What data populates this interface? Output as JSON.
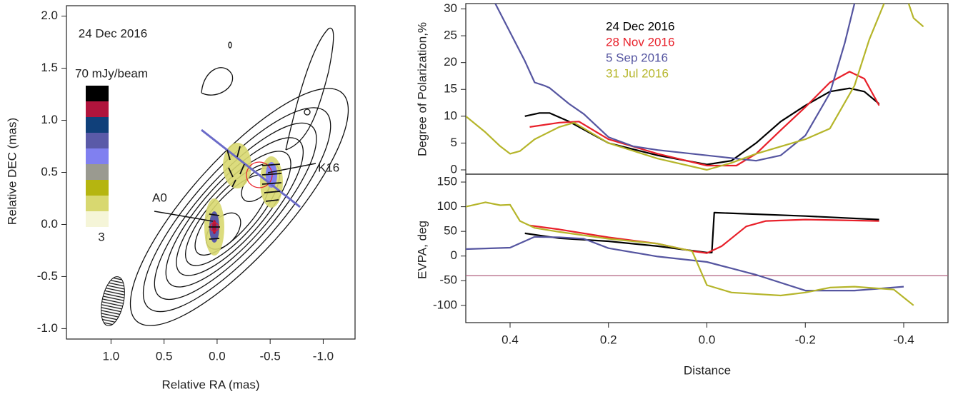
{
  "chart_data": [
    {
      "type": "contour",
      "title": "24 Dec 2016",
      "xlabel": "Relative RA (mas)",
      "ylabel": "Relative DEC (mas)",
      "xlim": [
        1.42,
        -1.3
      ],
      "ylim": [
        -1.1,
        2.1
      ],
      "xticks": [
        {
          "value": 1.0,
          "label": "1.0"
        },
        0.5,
        {
          "value": 0.0,
          "label": "0.0"
        },
        -0.5,
        {
          "value": -1.0,
          "label": "-1.0"
        }
      ],
      "yticks": [
        {
          "value": -1.0,
          "label": "-1.0"
        },
        -0.5,
        {
          "value": 0.0,
          "label": "0.0"
        },
        0.5,
        {
          "value": 1.0,
          "label": "1.0"
        },
        1.5,
        {
          "value": 2.0,
          "label": "2.0"
        }
      ],
      "annotations": [
        "A0",
        "K16"
      ],
      "colorbar": {
        "max_label": "70 mJy/beam",
        "min_label": "3",
        "colors": [
          "#000000",
          "#b0143c",
          "#10407a",
          "#5a5aa8",
          "#8080f0",
          "#9a9a90",
          "#b5b510",
          "#d8d870",
          "#f5f5d8"
        ]
      }
    },
    {
      "type": "line",
      "ylabel": "Degree of Polarization,%",
      "xlim": [
        0.49,
        -0.49
      ],
      "ylim": [
        -0.8,
        31
      ],
      "yticks": [
        0,
        5,
        10,
        15,
        20,
        25,
        30
      ],
      "legend": "upper center",
      "series": [
        {
          "name": "24 Dec 2016",
          "color": "#000000",
          "x": [
            0.37,
            0.34,
            0.32,
            0.28,
            0.2,
            0.1,
            0.0,
            -0.05,
            -0.1,
            -0.15,
            -0.2,
            -0.25,
            -0.29,
            -0.32,
            -0.35
          ],
          "values": [
            10,
            10.6,
            10.6,
            9,
            5,
            2.7,
            1,
            1.7,
            5,
            9,
            12,
            14.6,
            15.2,
            14.6,
            12.3
          ]
        },
        {
          "name": "28 Nov 2016",
          "color": "#e8202a",
          "x": [
            0.36,
            0.3,
            0.26,
            0.2,
            0.1,
            0.0,
            -0.06,
            -0.1,
            -0.15,
            -0.2,
            -0.25,
            -0.29,
            -0.32,
            -0.35
          ],
          "values": [
            8,
            8.8,
            9,
            5.7,
            3,
            0.8,
            0.8,
            3,
            7.4,
            11.7,
            16.3,
            18.3,
            17,
            12
          ]
        },
        {
          "name": "5 Sep 2016",
          "color": "#5555a0",
          "x": [
            0.43,
            0.37,
            0.35,
            0.33,
            0.32,
            0.28,
            0.25,
            0.2,
            0.15,
            0.1,
            0.0,
            -0.1,
            -0.15,
            -0.2,
            -0.25,
            -0.28,
            -0.3
          ],
          "values": [
            31,
            20.3,
            16.3,
            15.7,
            15.3,
            12.3,
            10.4,
            6.1,
            4.4,
            3.7,
            2.7,
            1.7,
            2.7,
            6.4,
            14.3,
            23.6,
            31
          ]
        },
        {
          "name": "31 Jul 2016",
          "color": "#b5b52a",
          "x": [
            0.49,
            0.45,
            0.42,
            0.4,
            0.38,
            0.35,
            0.3,
            0.27,
            0.2,
            0.1,
            0.0,
            -0.05,
            -0.1,
            -0.2,
            -0.25,
            -0.3,
            -0.33,
            -0.36,
            null,
            -0.41,
            -0.42,
            -0.44
          ],
          "values": [
            10,
            7,
            4.4,
            3,
            3.5,
            5.7,
            8,
            8.8,
            5,
            2.1,
            0,
            1.3,
            3,
            5.7,
            7.7,
            15.7,
            24.3,
            31,
            null,
            31,
            28.3,
            26.7
          ]
        }
      ]
    },
    {
      "type": "line",
      "ylabel": "EVPA, deg",
      "xlabel": "Distance",
      "xlim": [
        0.49,
        -0.49
      ],
      "ylim": [
        -135,
        166
      ],
      "xticks": [
        0.4,
        0.2,
        {
          "value": 0.0,
          "label": "0.0"
        },
        -0.2,
        -0.4
      ],
      "yticks": [
        -100,
        -50,
        0,
        50,
        100,
        150
      ],
      "hlines": [
        {
          "value": -40,
          "color": "#b06080"
        }
      ],
      "series": [
        {
          "name": "24 Dec 2016",
          "color": "#000000",
          "x": [
            0.37,
            0.3,
            0.2,
            0.1,
            0.0,
            -0.01,
            -0.015,
            -0.2,
            -0.35
          ],
          "values": [
            46,
            36,
            30,
            20,
            7,
            7,
            88,
            81,
            74
          ]
        },
        {
          "name": "28 Nov 2016",
          "color": "#e8202a",
          "x": [
            0.36,
            0.3,
            0.2,
            0.1,
            0.03,
            0.0,
            -0.03,
            -0.08,
            -0.12,
            -0.2,
            -0.35
          ],
          "values": [
            62,
            54,
            38,
            25,
            10,
            6,
            20,
            60,
            71,
            74,
            71
          ]
        },
        {
          "name": "5 Sep 2016",
          "color": "#5555a0",
          "x": [
            0.49,
            0.4,
            0.35,
            0.3,
            0.25,
            0.2,
            0.1,
            0.0,
            -0.1,
            -0.2,
            -0.3,
            -0.4
          ],
          "values": [
            14,
            17,
            39,
            38,
            35,
            16,
            -1,
            -12,
            -38,
            -70,
            -70,
            -62
          ]
        },
        {
          "name": "31 Jul 2016",
          "color": "#b5b52a",
          "x": [
            0.49,
            0.45,
            0.42,
            0.4,
            0.38,
            0.35,
            0.3,
            0.2,
            0.1,
            0.03,
            0.0,
            -0.05,
            -0.15,
            -0.2,
            -0.25,
            -0.3,
            -0.38,
            -0.42
          ],
          "values": [
            100,
            109,
            103,
            104,
            71,
            57,
            49,
            35,
            25,
            10,
            -59,
            -74,
            -80,
            -74,
            -64,
            -62,
            -68,
            -100
          ]
        }
      ]
    }
  ]
}
